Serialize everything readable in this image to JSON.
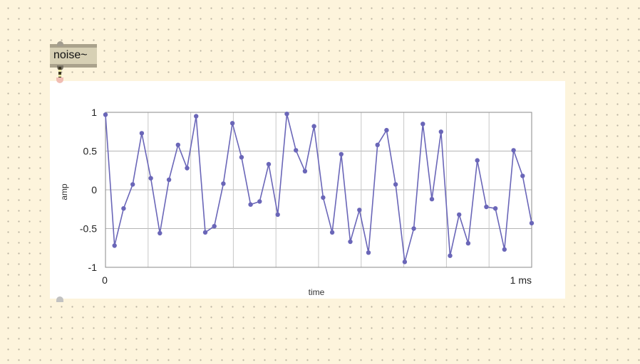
{
  "canvas": {
    "background": "#fdf4dc"
  },
  "noise_object": {
    "label": "noise~"
  },
  "chart_data": {
    "type": "line",
    "xlabel": "time",
    "ylabel": "amp",
    "ylim": [
      -1,
      1
    ],
    "x_tick_start": "0",
    "x_tick_end": "1 ms",
    "y_ticks": [
      "1",
      "0.5",
      "0",
      "-0.5",
      "-1"
    ],
    "grid": true,
    "series_color": "#6a66b8",
    "series": [
      {
        "values": [
          0.97,
          -0.72,
          -0.24,
          0.07,
          0.73,
          0.15,
          -0.56,
          0.13,
          0.58,
          0.28,
          0.95,
          -0.55,
          -0.47,
          0.08,
          0.86,
          0.42,
          -0.19,
          -0.15,
          0.33,
          -0.32,
          0.98,
          0.51,
          0.24,
          0.82,
          -0.1,
          -0.55,
          0.46,
          -0.67,
          -0.26,
          -0.81,
          0.58,
          0.77,
          0.07,
          -0.93,
          -0.5,
          0.85,
          -0.12,
          0.75,
          -0.85,
          -0.32,
          -0.69,
          0.38,
          -0.22,
          -0.24,
          -0.77,
          0.51,
          0.18,
          -0.43
        ]
      }
    ]
  }
}
